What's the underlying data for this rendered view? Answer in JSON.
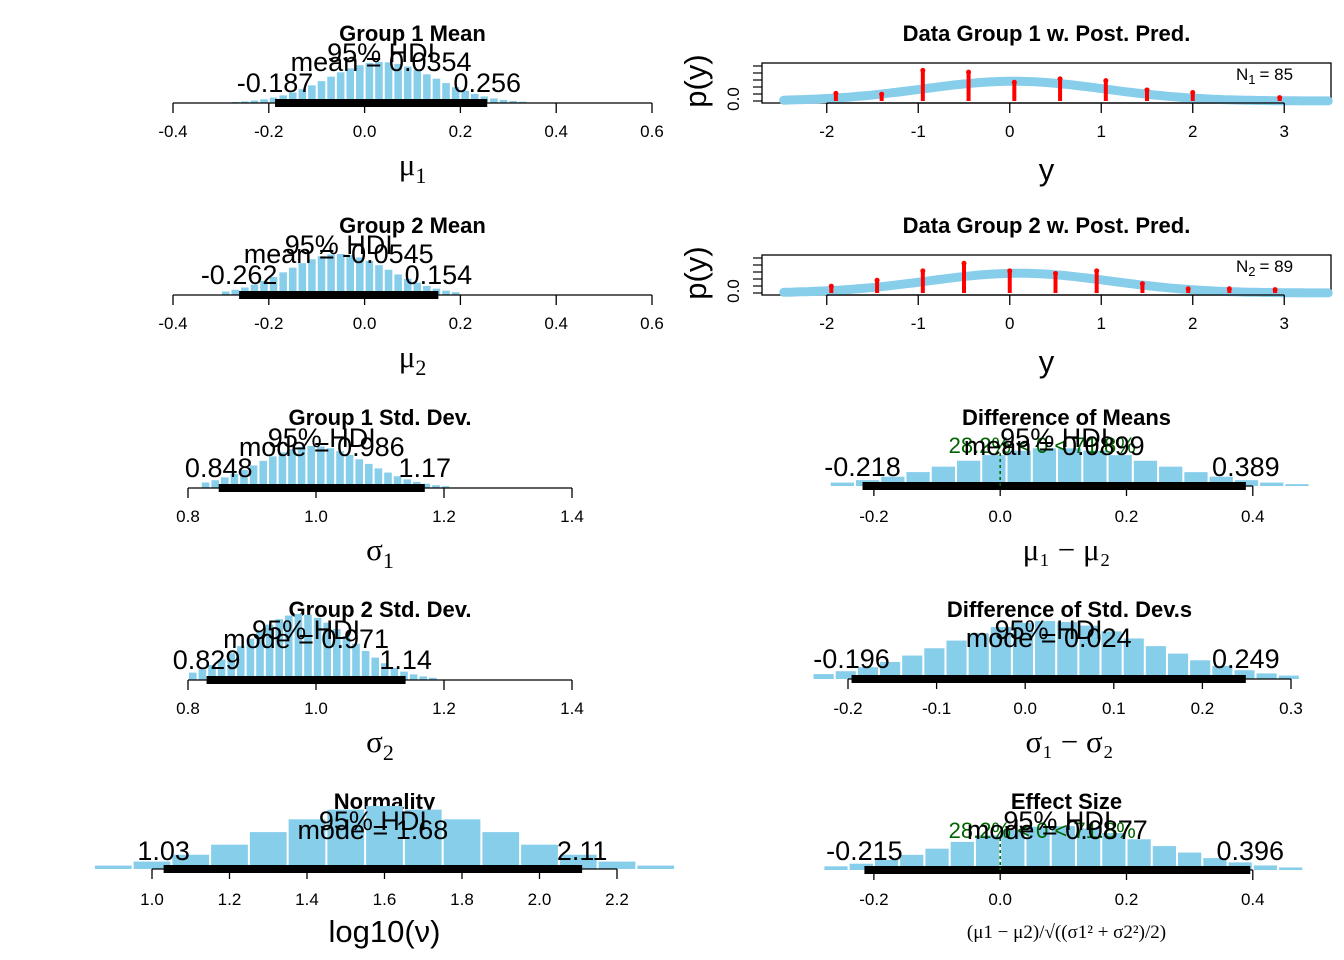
{
  "colors": {
    "bar": "#87CEEB",
    "hdi": "#000000",
    "data_stem": "#ff0000",
    "compare": "#006400",
    "curve": "#87CEEB"
  },
  "hdi_label": "95% HDI",
  "chart_data": [
    {
      "id": "mu1",
      "type": "bar",
      "title": "Group 1 Mean",
      "xlabel_main": "μ",
      "xlabel_sub": "1",
      "central": "mean = 0.0354",
      "hdi": [
        -0.187,
        0.256
      ],
      "hdi_text": [
        "-0.187",
        "0.256"
      ],
      "xlim": [
        -0.4,
        0.6
      ],
      "ticks": [
        -0.4,
        -0.2,
        0.0,
        0.2,
        0.4,
        0.6
      ],
      "tick_labels": [
        "-0.4",
        "-0.2",
        "0.0",
        "0.2",
        "0.4",
        "0.6"
      ],
      "center": 0.0354,
      "sd": 0.112,
      "bin_width": 0.02,
      "range": [
        -0.3,
        0.34
      ]
    },
    {
      "id": "mu2",
      "type": "bar",
      "title": "Group 2 Mean",
      "xlabel_main": "μ",
      "xlabel_sub": "2",
      "central": "mean = -0.0545",
      "hdi": [
        -0.262,
        0.154
      ],
      "hdi_text": [
        "-0.262",
        "0.154"
      ],
      "xlim": [
        -0.4,
        0.6
      ],
      "ticks": [
        -0.4,
        -0.2,
        0.0,
        0.2,
        0.4,
        0.6
      ],
      "tick_labels": [
        "-0.4",
        "-0.2",
        "0.0",
        "0.2",
        "0.4",
        "0.6"
      ],
      "center": -0.0545,
      "sd": 0.106,
      "bin_width": 0.02,
      "range": [
        -0.3,
        0.2
      ]
    },
    {
      "id": "sigma1",
      "type": "bar",
      "title": "Group 1 Std. Dev.",
      "xlabel_main": "σ",
      "xlabel_sub": "1",
      "central": "mode = 0.986",
      "hdi": [
        0.848,
        1.17
      ],
      "hdi_text": [
        "0.848",
        "1.17"
      ],
      "xlim": [
        0.8,
        1.4
      ],
      "ticks": [
        0.8,
        1.0,
        1.2,
        1.4
      ],
      "tick_labels": [
        "0.8",
        "1.0",
        "1.2",
        "1.4"
      ],
      "center": 0.995,
      "sd": 0.083,
      "bin_width": 0.015,
      "range": [
        0.82,
        1.2
      ]
    },
    {
      "id": "sigma2",
      "type": "bar",
      "title": "Group 2 Std. Dev.",
      "xlabel_main": "σ",
      "xlabel_sub": "2",
      "central": "mode = 0.971",
      "hdi": [
        0.829,
        1.14
      ],
      "hdi_text": [
        "0.829",
        "1.14"
      ],
      "xlim": [
        0.8,
        1.4
      ],
      "ticks": [
        0.8,
        1.0,
        1.2,
        1.4
      ],
      "tick_labels": [
        "0.8",
        "1.0",
        "1.2",
        "1.4"
      ],
      "center": 0.975,
      "sd": 0.08,
      "bin_width": 0.015,
      "range": [
        0.8,
        1.18
      ]
    },
    {
      "id": "normality",
      "type": "bar",
      "title": "Normality",
      "xlabel_main": "log10(ν)",
      "xlabel_sub": "",
      "central": "mode = 1.68",
      "hdi": [
        1.03,
        2.11
      ],
      "hdi_text": [
        "1.03",
        "2.11"
      ],
      "xlim": [
        1.0,
        2.2
      ],
      "ticks": [
        1.0,
        1.2,
        1.4,
        1.6,
        1.8,
        2.0,
        2.2
      ],
      "tick_labels": [
        "1.0",
        "1.2",
        "1.4",
        "1.6",
        "1.8",
        "2.0",
        "2.2"
      ],
      "center": 1.6,
      "sd": 0.29,
      "bin_width": 0.1,
      "range": [
        0.85,
        2.3
      ]
    },
    {
      "id": "diffmeans",
      "type": "bar",
      "title": "Difference of Means",
      "xlabel_main": "μ₁ − μ₂",
      "xlabel_sub": "",
      "central": "mean = 0.0899",
      "compare": "28.2% < 0 < 71.8%",
      "compare_value": 0,
      "hdi": [
        -0.218,
        0.389
      ],
      "hdi_text": [
        "-0.218",
        "0.389"
      ],
      "xlim": [
        -0.26,
        0.47
      ],
      "ticks": [
        -0.2,
        0.0,
        0.2,
        0.4
      ],
      "tick_labels": [
        "-0.2",
        "0.0",
        "0.2",
        "0.4"
      ],
      "center": 0.0899,
      "sd": 0.155,
      "bin_width": 0.04,
      "range": [
        -0.27,
        0.48
      ]
    },
    {
      "id": "diffsd",
      "type": "bar",
      "title": "Difference of Std. Dev.s",
      "xlabel_main": "σ₁ − σ₂",
      "xlabel_sub": "",
      "central": "mode = 0.024",
      "hdi": [
        -0.196,
        0.249
      ],
      "hdi_text": [
        "-0.196",
        "0.249"
      ],
      "xlim": [
        -0.2,
        0.3
      ],
      "ticks": [
        -0.2,
        -0.1,
        0.0,
        0.1,
        0.2,
        0.3
      ],
      "tick_labels": [
        "-0.2",
        "-0.1",
        "0.0",
        "0.1",
        "0.2",
        "0.3"
      ],
      "center": 0.026,
      "sd": 0.114,
      "bin_width": 0.025,
      "range": [
        -0.24,
        0.3
      ]
    },
    {
      "id": "effect",
      "type": "bar",
      "title": "Effect Size",
      "xlabel_main": "(μ1 − μ2)/√((σ1² + σ2²)/2)",
      "xlabel_sub": "",
      "central": "mode = 0.0877",
      "compare": "28.2% < 0 < 71.8%",
      "compare_value": 0,
      "hdi": [
        -0.215,
        0.396
      ],
      "hdi_text": [
        "-0.215",
        "0.396"
      ],
      "xlim": [
        -0.26,
        0.47
      ],
      "ticks": [
        -0.2,
        0.0,
        0.2,
        0.4
      ],
      "tick_labels": [
        "-0.2",
        "0.0",
        "0.2",
        "0.4"
      ],
      "center": 0.0877,
      "sd": 0.156,
      "bin_width": 0.04,
      "range": [
        -0.28,
        0.47
      ]
    },
    {
      "id": "ppc1",
      "type": "line",
      "title": "Data Group 1 w. Post. Pred.",
      "xlabel": "y",
      "ylabel": "p(y)",
      "ytick_label": "0.0",
      "n_label": "N",
      "n_sub": "1",
      "n_value": "= 85",
      "xlim": [
        -2.5,
        3.5
      ],
      "ticks": [
        -2,
        -1,
        0,
        1,
        2,
        3
      ],
      "tick_labels": [
        "-2",
        "-1",
        "0",
        "1",
        "2",
        "3"
      ],
      "curve_mean": 0.04,
      "curve_sd": 1.0,
      "data_x": [
        -1.9,
        -1.4,
        -0.95,
        -0.45,
        0.05,
        0.55,
        1.05,
        1.5,
        2.0,
        2.95
      ],
      "data_y": [
        0.09,
        0.08,
        0.36,
        0.34,
        0.22,
        0.26,
        0.24,
        0.13,
        0.1,
        0.04
      ]
    },
    {
      "id": "ppc2",
      "type": "line",
      "title": "Data Group 2 w. Post. Pred.",
      "xlabel": "y",
      "ylabel": "p(y)",
      "ytick_label": "0.0",
      "n_label": "N",
      "n_sub": "2",
      "n_value": "= 89",
      "xlim": [
        -2.5,
        3.5
      ],
      "ticks": [
        -2,
        -1,
        0,
        1,
        2,
        3
      ],
      "tick_labels": [
        "-2",
        "-1",
        "0",
        "1",
        "2",
        "3"
      ],
      "curve_mean": 0.1,
      "curve_sd": 1.0,
      "data_x": [
        -1.95,
        -1.45,
        -0.95,
        -0.5,
        0.0,
        0.5,
        0.95,
        1.45,
        1.95,
        2.4,
        2.9
      ],
      "data_y": [
        0.08,
        0.15,
        0.26,
        0.35,
        0.26,
        0.23,
        0.26,
        0.11,
        0.05,
        0.05,
        0.04
      ]
    }
  ]
}
